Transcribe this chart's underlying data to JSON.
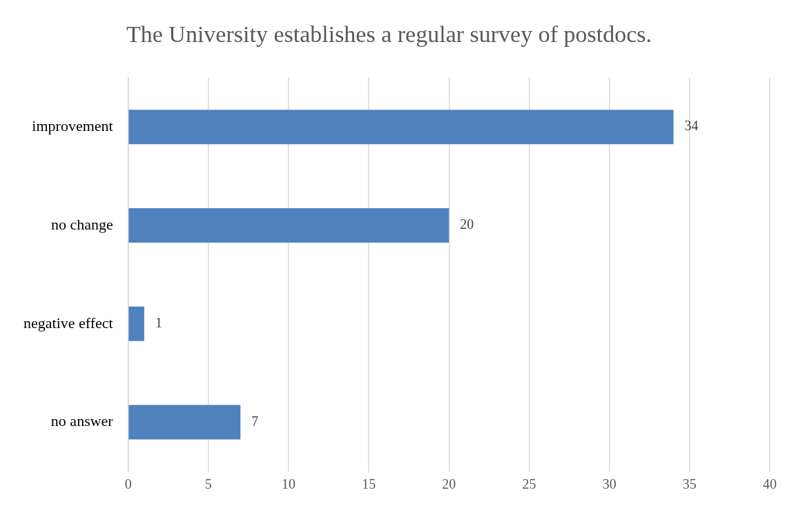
{
  "chart_data": {
    "type": "bar",
    "orientation": "horizontal",
    "title": "The University establishes a regular survey of postdocs.",
    "categories": [
      "improvement",
      "no change",
      "negative effect",
      "no answer"
    ],
    "values": [
      34,
      20,
      1,
      7
    ],
    "color": "#4f81bd",
    "xlim": [
      0,
      40
    ],
    "xticks": [
      0,
      5,
      10,
      15,
      20,
      25,
      30,
      35,
      40
    ],
    "grid": "x",
    "data_labels": true
  }
}
